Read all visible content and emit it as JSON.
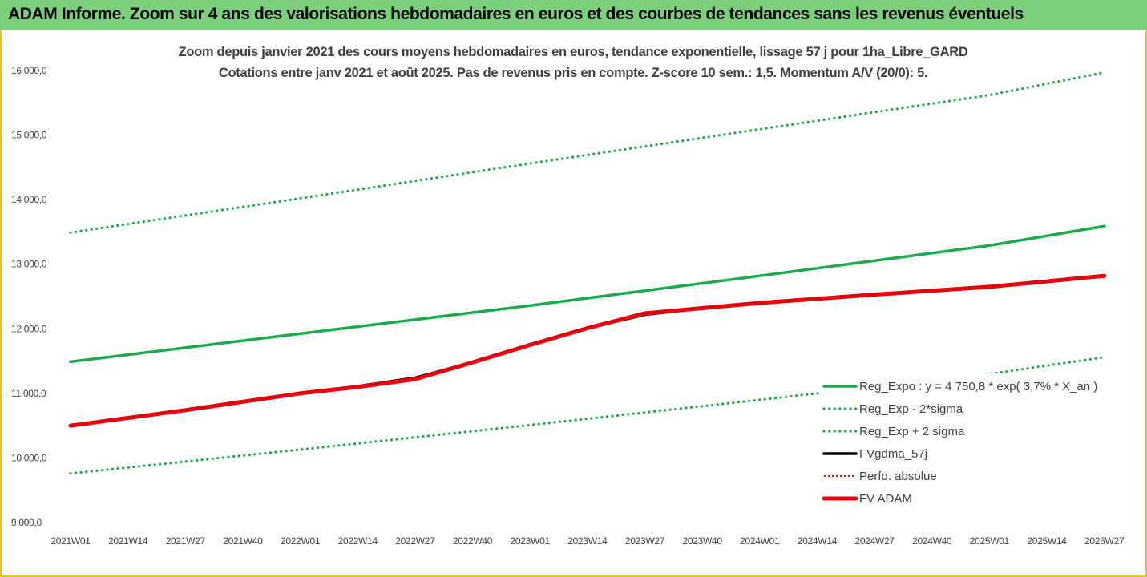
{
  "banner": {
    "title": "ADAM Informe. Zoom sur 4 ans des valorisations hebdomadaires en euros et des courbes de tendances sans les revenus éventuels"
  },
  "chart_data": {
    "type": "line",
    "title_line1": "Zoom depuis janvier 2021 des cours moyens hebdomadaires en euros, tendance exponentielle, lissage 57 j pour 1ha_Libre_GARD",
    "title_line2": "Cotations entre janv 2021 et août 2025.  Pas de revenus pris en compte. Z-score 10 sem.: 1,5. Momentum A/V (20/0): 5.",
    "x_ticks": [
      "2021W01",
      "2021W14",
      "2021W27",
      "2021W40",
      "2022W01",
      "2022W14",
      "2022W27",
      "2022W40",
      "2023W01",
      "2023W14",
      "2023W27",
      "2023W40",
      "2024W01",
      "2024W14",
      "2024W27",
      "2024W40",
      "2025W01",
      "2025W14",
      "2025W27"
    ],
    "y_ticks": [
      "9 000,0",
      "10 000,0",
      "11 000,0",
      "12 000,0",
      "13 000,0",
      "14 000,0",
      "15 000,0",
      "16 000,0"
    ],
    "ylim": [
      9000,
      16000
    ],
    "grid": false,
    "legend_position": "bottom-right",
    "series": [
      {
        "name": "Reg_Expo : y = 4 750,8 * exp( 3,7% *  X_an )",
        "color": "#1aab4a",
        "style": "solid",
        "points": [
          [
            "2021W01",
            11490
          ],
          [
            "2022W01",
            11925
          ],
          [
            "2023W01",
            12360
          ],
          [
            "2024W01",
            12820
          ],
          [
            "2025W01",
            13290
          ],
          [
            "2025W27",
            13590
          ]
        ]
      },
      {
        "name": "Reg_Exp - 2*sigma",
        "color": "#1aab4a",
        "style": "dotted",
        "points": [
          [
            "2021W01",
            9760
          ],
          [
            "2022W01",
            10130
          ],
          [
            "2023W01",
            10510
          ],
          [
            "2024W01",
            10900
          ],
          [
            "2025W01",
            11300
          ],
          [
            "2025W27",
            11560
          ]
        ]
      },
      {
        "name": "Reg_Exp + 2 sigma",
        "color": "#1aab4a",
        "style": "dotted",
        "points": [
          [
            "2021W01",
            13490
          ],
          [
            "2022W01",
            14020
          ],
          [
            "2023W01",
            14560
          ],
          [
            "2024W01",
            15090
          ],
          [
            "2025W01",
            15620
          ],
          [
            "2025W27",
            15970
          ]
        ]
      },
      {
        "name": "FVgdma_57j",
        "color": "#000000",
        "style": "solid",
        "points": [
          [
            "2021W01",
            10500
          ],
          [
            "2021W27",
            10740
          ],
          [
            "2022W01",
            11000
          ],
          [
            "2022W14",
            11110
          ],
          [
            "2022W27",
            11240
          ],
          [
            "2022W40",
            11480
          ],
          [
            "2023W01",
            11750
          ],
          [
            "2023W14",
            12010
          ],
          [
            "2023W27",
            12220
          ],
          [
            "2023W40",
            12320
          ],
          [
            "2024W01",
            12400
          ],
          [
            "2024W27",
            12530
          ],
          [
            "2025W01",
            12650
          ],
          [
            "2025W27",
            12820
          ]
        ]
      },
      {
        "name": "Perfo. absolue",
        "color": "#e8000b",
        "style": "dotted",
        "points": []
      },
      {
        "name": "FV ADAM",
        "color": "#e8000b",
        "style": "solid-thick",
        "points": [
          [
            "2021W01",
            10500
          ],
          [
            "2021W27",
            10740
          ],
          [
            "2022W01",
            11000
          ],
          [
            "2022W14",
            11100
          ],
          [
            "2022W27",
            11220
          ],
          [
            "2022W40",
            11480
          ],
          [
            "2023W01",
            11750
          ],
          [
            "2023W14",
            12010
          ],
          [
            "2023W27",
            12240
          ],
          [
            "2023W40",
            12320
          ],
          [
            "2024W01",
            12400
          ],
          [
            "2024W27",
            12530
          ],
          [
            "2025W01",
            12650
          ],
          [
            "2025W27",
            12820
          ]
        ]
      }
    ]
  }
}
